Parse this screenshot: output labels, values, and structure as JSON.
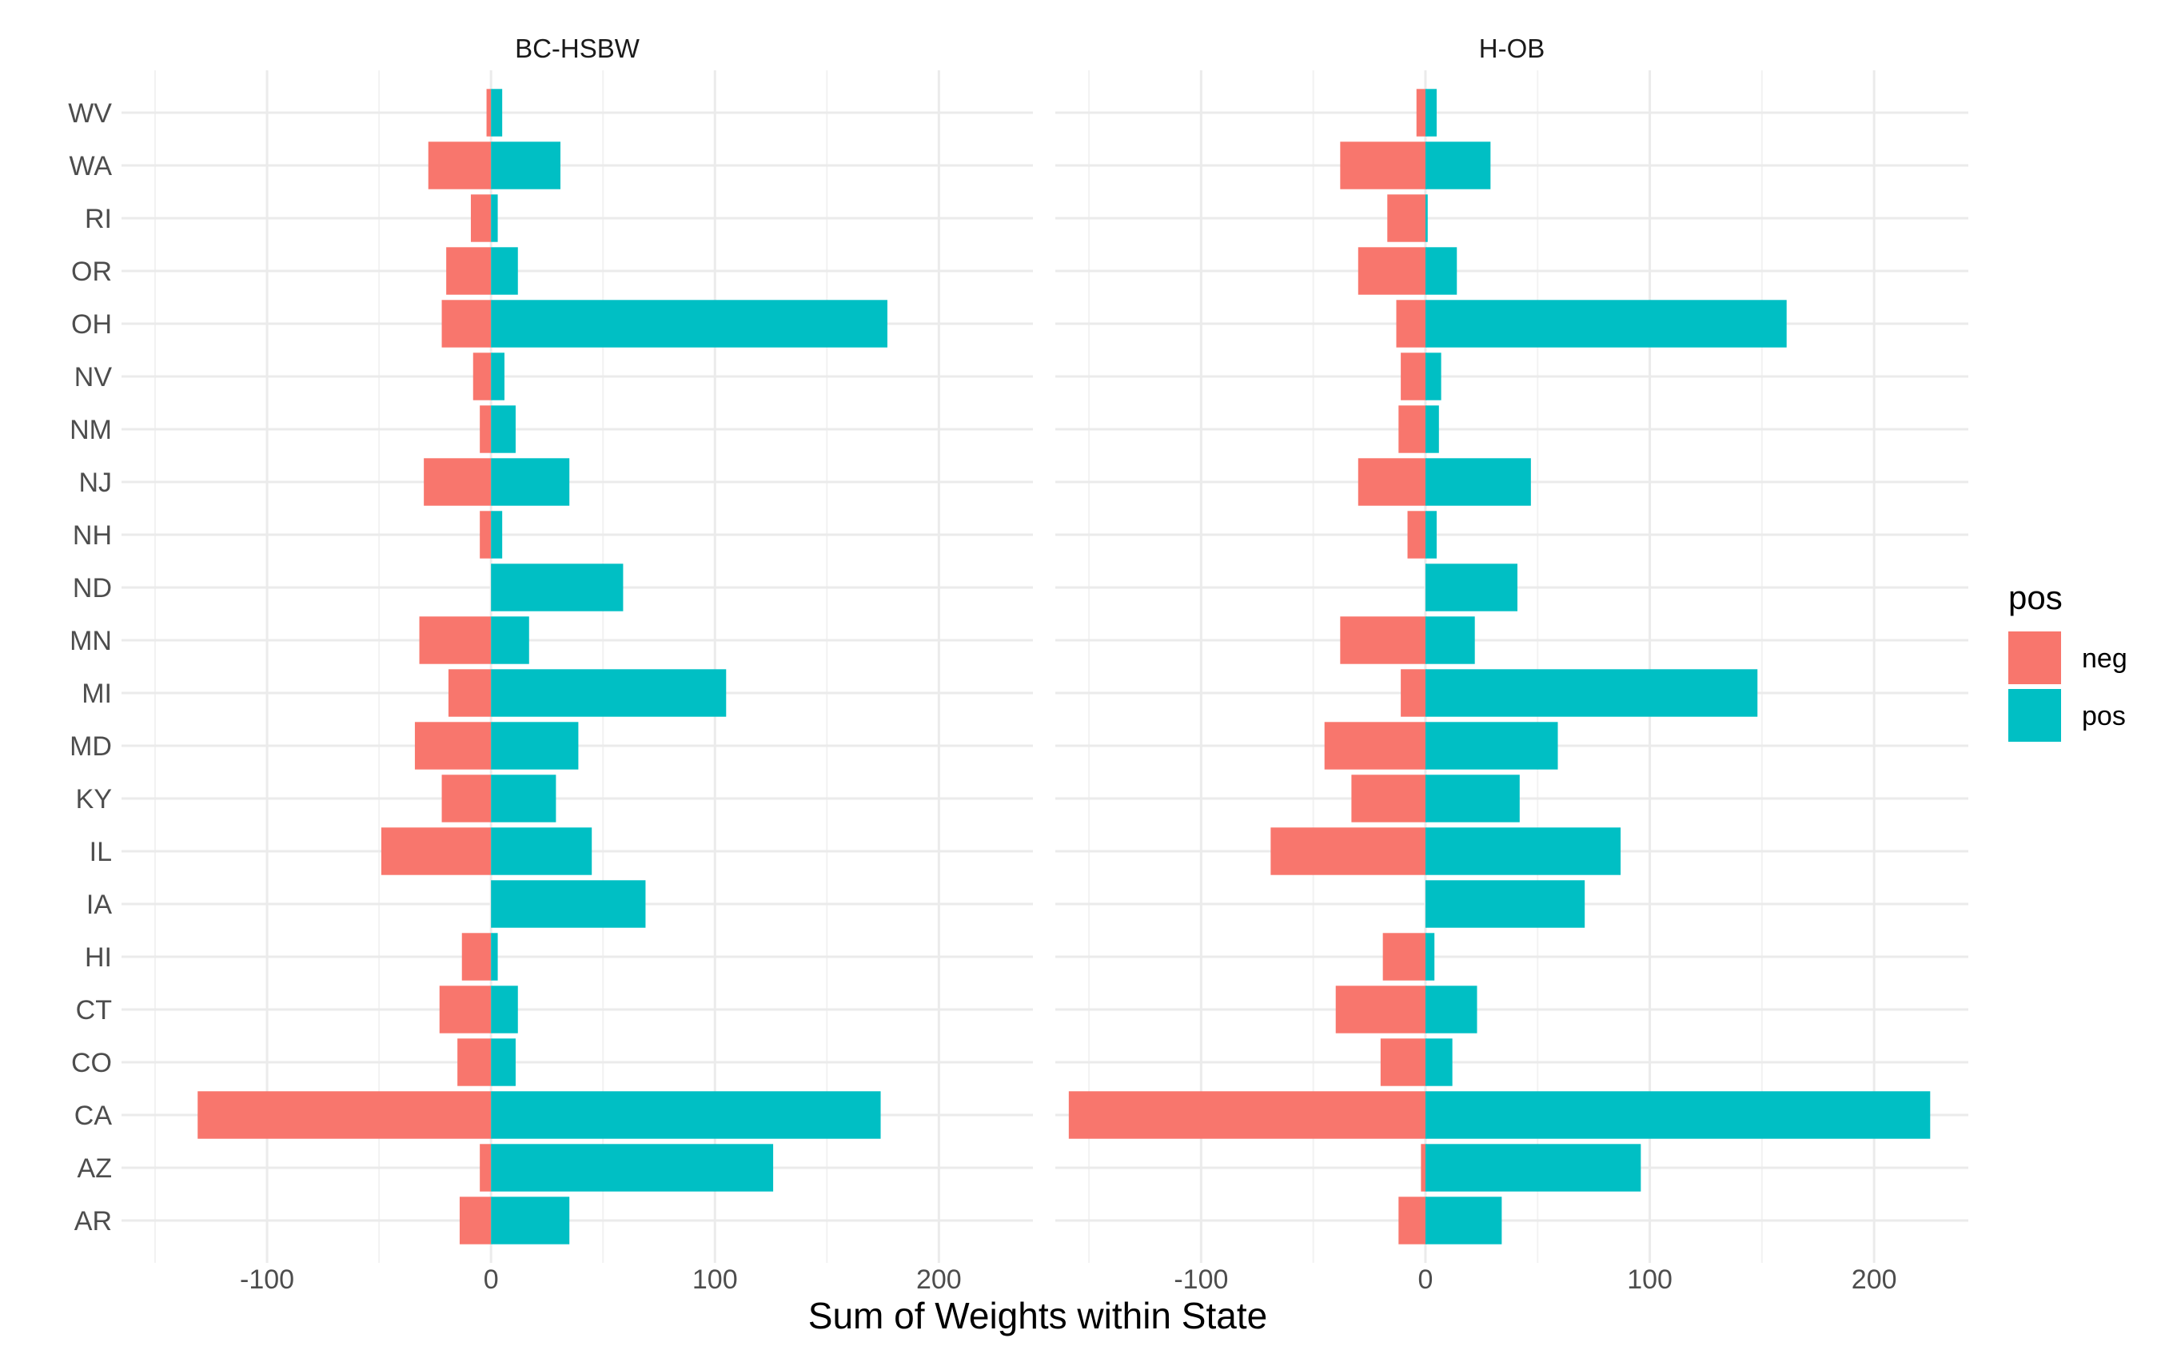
{
  "chart_data": {
    "type": "bar",
    "orientation": "horizontal",
    "xlabel": "Sum of Weights within State",
    "categories": [
      "AR",
      "AZ",
      "CA",
      "CO",
      "CT",
      "HI",
      "IA",
      "IL",
      "KY",
      "MD",
      "MI",
      "MN",
      "ND",
      "NH",
      "NJ",
      "NM",
      "NV",
      "OH",
      "OR",
      "RI",
      "WA",
      "WV"
    ],
    "legend": {
      "title": "pos",
      "position": "right",
      "entries": [
        {
          "name": "neg",
          "color": "#F8766D"
        },
        {
          "name": "pos",
          "color": "#00BFC4"
        }
      ]
    },
    "grid": true,
    "xlim": [
      -165,
      242
    ],
    "xticks": [
      -100,
      0,
      100,
      200
    ],
    "panels": [
      {
        "title": "BC-HSBW",
        "series": [
          {
            "name": "neg",
            "values": [
              -14,
              -5,
              -131,
              -15,
              -23,
              -13,
              0,
              -49,
              -22,
              -34,
              -19,
              -32,
              0,
              -5,
              -30,
              -5,
              -8,
              -22,
              -20,
              -9,
              -28,
              -2
            ]
          },
          {
            "name": "pos",
            "values": [
              35,
              126,
              174,
              11,
              12,
              3,
              69,
              45,
              29,
              39,
              105,
              17,
              59,
              5,
              35,
              11,
              6,
              177,
              12,
              3,
              31,
              5
            ]
          }
        ]
      },
      {
        "title": "H-OB",
        "series": [
          {
            "name": "neg",
            "values": [
              -12,
              -2,
              -159,
              -20,
              -40,
              -19,
              0,
              -69,
              -33,
              -45,
              -11,
              -38,
              0,
              -8,
              -30,
              -12,
              -11,
              -13,
              -30,
              -17,
              -38,
              -4
            ]
          },
          {
            "name": "pos",
            "values": [
              34,
              96,
              225,
              12,
              23,
              4,
              71,
              87,
              42,
              59,
              148,
              22,
              41,
              5,
              47,
              6,
              7,
              161,
              14,
              1,
              29,
              5
            ]
          }
        ]
      }
    ]
  }
}
